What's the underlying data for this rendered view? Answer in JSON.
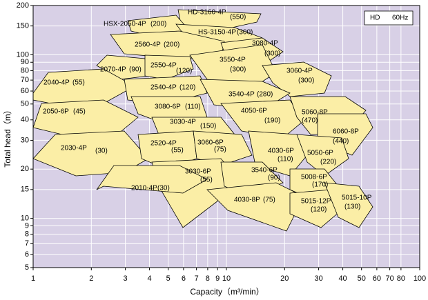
{
  "chart_data": {
    "type": "region",
    "xlabel": "Capacity（m³/min）",
    "ylabel": "Total head（m）",
    "xscale": "log",
    "yscale": "log",
    "xlim": [
      1,
      100
    ],
    "ylim": [
      5,
      200
    ],
    "xticks": [
      1,
      2,
      3,
      4,
      5,
      6,
      7,
      8,
      9,
      10,
      20,
      30,
      40,
      50,
      60,
      70,
      80,
      100
    ],
    "yticks": [
      5,
      6,
      7,
      8,
      9,
      10,
      15,
      20,
      30,
      40,
      50,
      60,
      70,
      80,
      90,
      100,
      150,
      200
    ],
    "grid": true,
    "background": "#d8d0e6",
    "color": "#fbeea6",
    "legend": [
      "HD",
      "60Hz"
    ],
    "legend_position": "upper right",
    "regions": [
      {
        "model": "HD-3160-4P",
        "power": "(550)"
      },
      {
        "model": "HSX-2050-4P",
        "power": "(200)"
      },
      {
        "model": "HS-3150-4P",
        "power": "(300)"
      },
      {
        "model": "2560-4P",
        "power": "(200)"
      },
      {
        "model": "3080-4P",
        "power": "(300)"
      },
      {
        "model": "2070-4P",
        "power": "(90)"
      },
      {
        "model": "2550-4P",
        "power": "(120)"
      },
      {
        "model": "3550-4P",
        "power": "(300)"
      },
      {
        "model": "3060-4P",
        "power": "(300)"
      },
      {
        "model": "2040-4P",
        "power": "(55)"
      },
      {
        "model": "2540-4P",
        "power": "(120)"
      },
      {
        "model": "3540-4P",
        "power": "(280)"
      },
      {
        "model": "3080-6P",
        "power": "(110)"
      },
      {
        "model": "2050-6P",
        "power": "(45)"
      },
      {
        "model": "4050-6P",
        "power": "(190)"
      },
      {
        "model": "5060-8P",
        "power": "(470)"
      },
      {
        "model": "6060-8P",
        "power": "(440)"
      },
      {
        "model": "3030-4P",
        "power": "(150)"
      },
      {
        "model": "2030-4P",
        "power": "(30)"
      },
      {
        "model": "2520-4P",
        "power": "(55)"
      },
      {
        "model": "3060-6P",
        "power": "(75)"
      },
      {
        "model": "4030-6P",
        "power": "(110)"
      },
      {
        "model": "5050-6P",
        "power": "(220)"
      },
      {
        "model": "3030-6P",
        "power": "(55)"
      },
      {
        "model": "3540-6P",
        "power": "(90)"
      },
      {
        "model": "2010-4P",
        "power": "(30)"
      },
      {
        "model": "5008-6P",
        "power": "(170)"
      },
      {
        "model": "4030-8P",
        "power": "(75)"
      },
      {
        "model": "5015-12P",
        "power": "(120)"
      },
      {
        "model": "5015-10P",
        "power": "(130)"
      }
    ]
  }
}
